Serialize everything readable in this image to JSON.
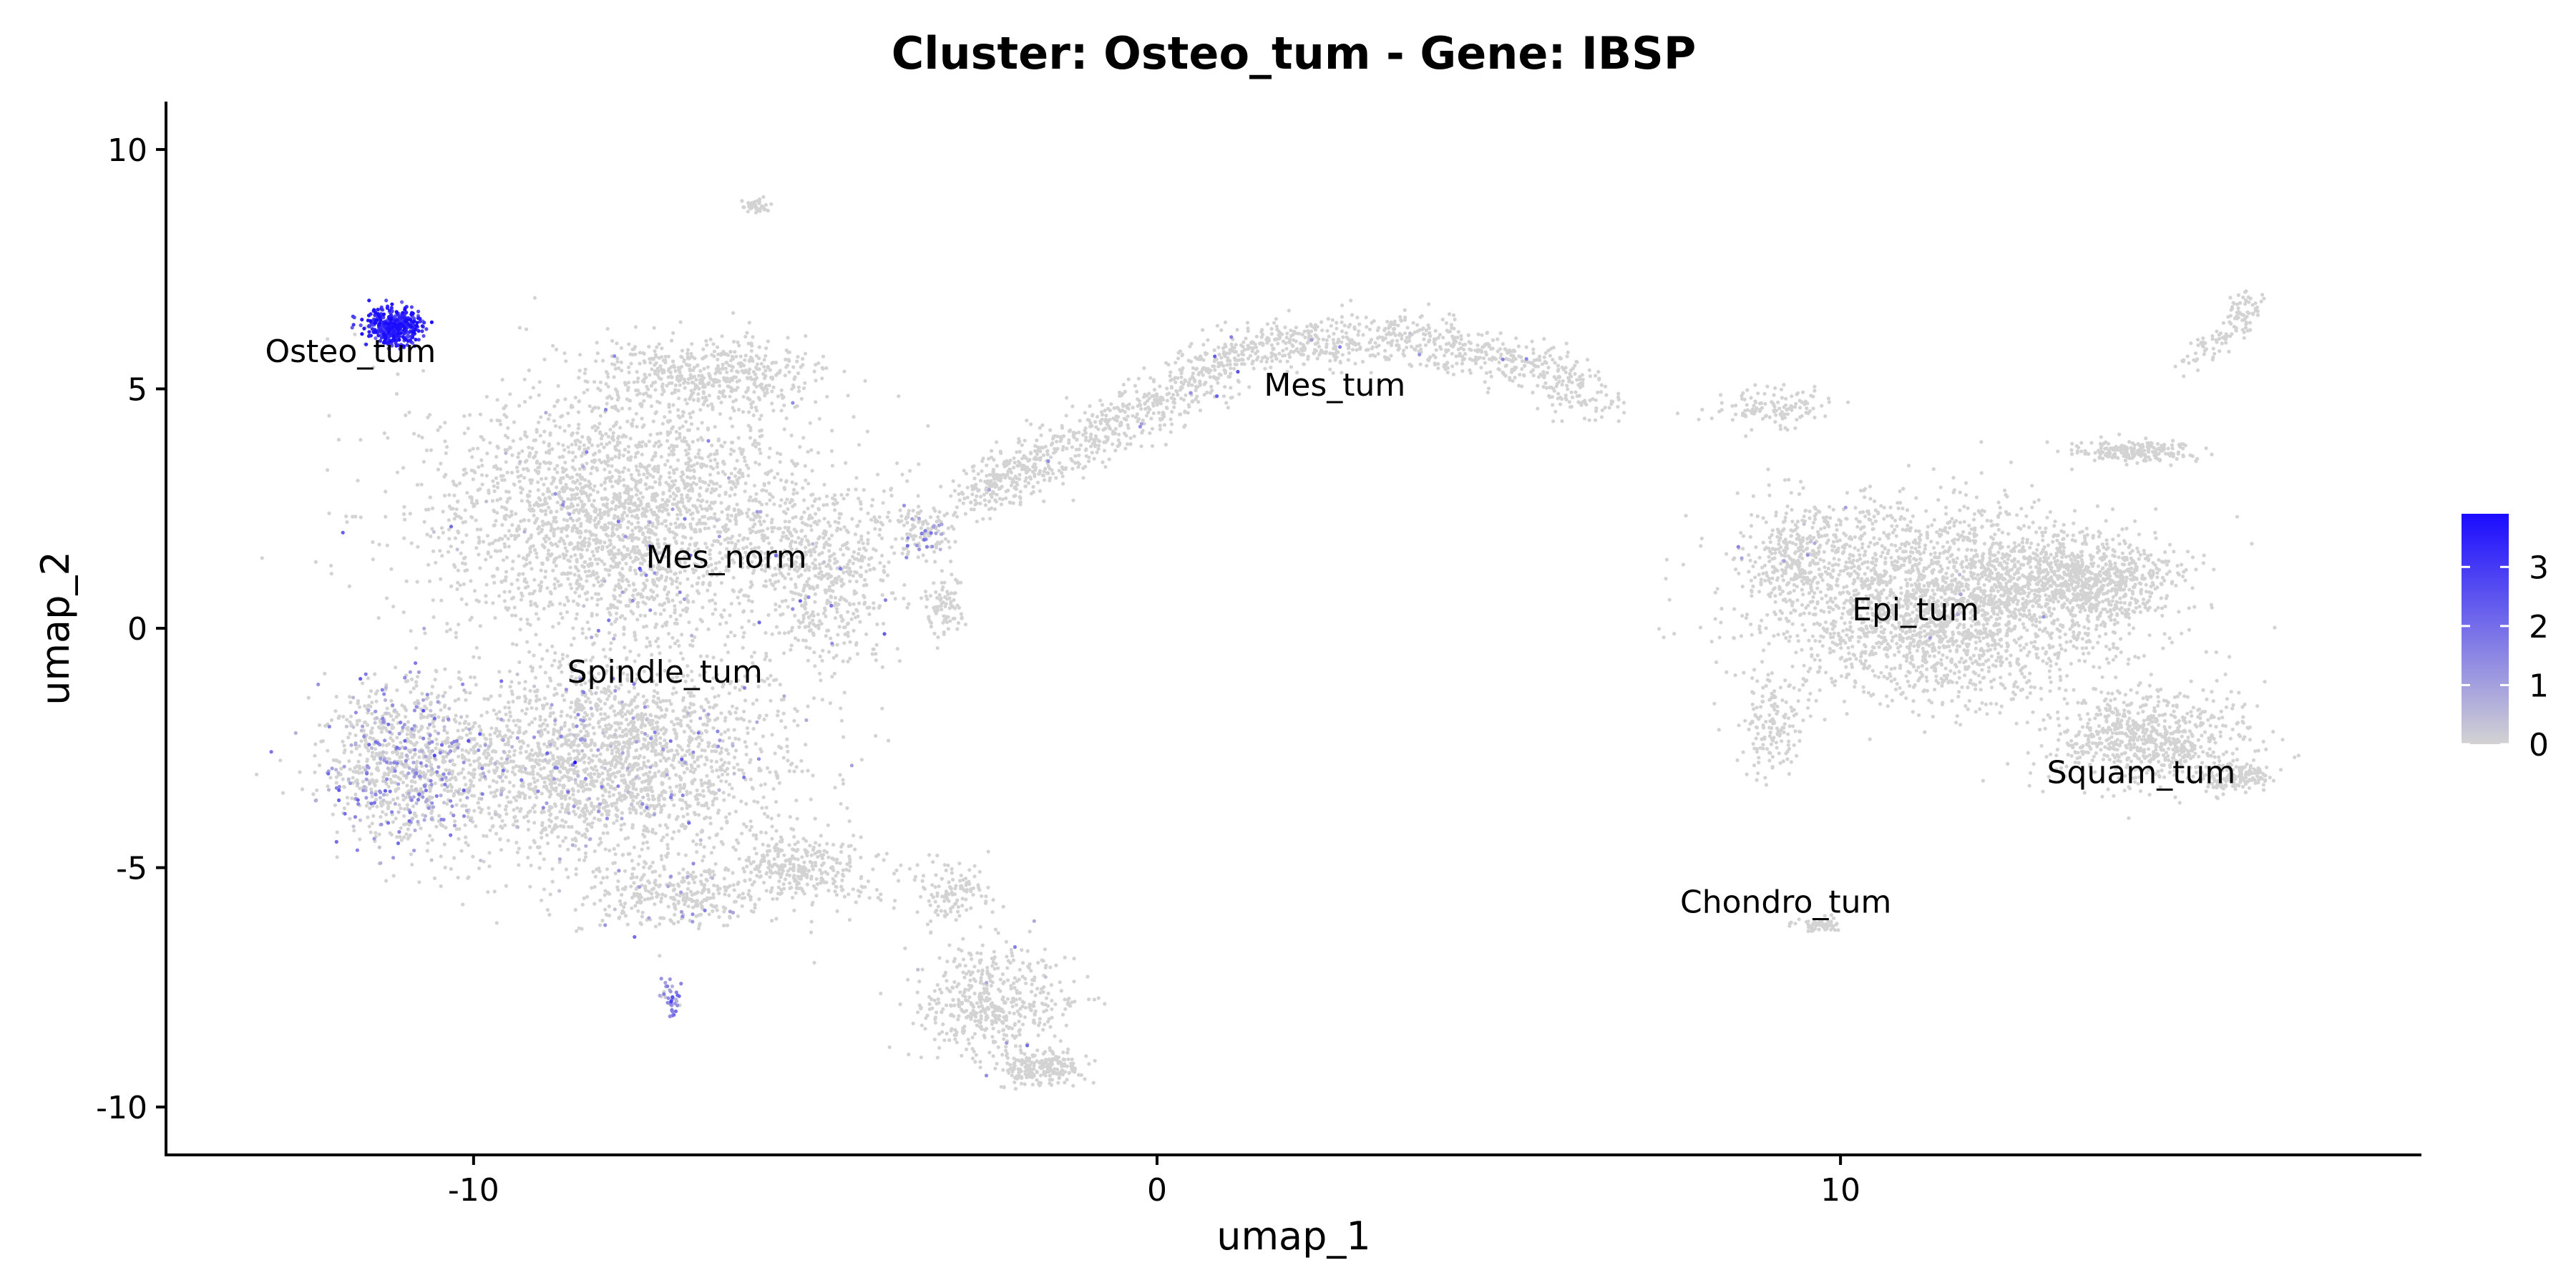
{
  "chart_data": {
    "type": "scatter",
    "title": "Cluster: Osteo_tum - Gene: IBSP",
    "xlabel": "umap_1",
    "ylabel": "umap_2",
    "xlim": [
      -14.5,
      18.5
    ],
    "ylim": [
      -11,
      11
    ],
    "xticks": [
      {
        "value": -10,
        "label": "-10"
      },
      {
        "value": 0,
        "label": "0"
      },
      {
        "value": 10,
        "label": "10"
      }
    ],
    "yticks": [
      {
        "value": 10,
        "label": "10"
      },
      {
        "value": 5,
        "label": "5"
      },
      {
        "value": 0,
        "label": "0"
      },
      {
        "value": -5,
        "label": "-5"
      },
      {
        "value": -10,
        "label": "-10"
      }
    ],
    "grid": false,
    "legend_position": "right",
    "colorbar": {
      "min": 0,
      "max": 3.9,
      "low_color": "#d3d3d3",
      "high_color": "#1a0cff",
      "ticks": [
        {
          "value": 0,
          "label": "0"
        },
        {
          "value": 1,
          "label": "1"
        },
        {
          "value": 2,
          "label": "2"
        },
        {
          "value": 3,
          "label": "3"
        }
      ]
    },
    "cluster_labels": [
      {
        "name": "Osteo_tum",
        "x": -11.8,
        "y": 5.8
      },
      {
        "name": "Mes_tum",
        "x": 2.6,
        "y": 5.1
      },
      {
        "name": "Mes_norm",
        "x": -6.3,
        "y": 1.5
      },
      {
        "name": "Epi_tum",
        "x": 11.1,
        "y": 0.4
      },
      {
        "name": "Spindle_tum",
        "x": -7.2,
        "y": -0.9
      },
      {
        "name": "Squam_tum",
        "x": 14.4,
        "y": -3.0
      },
      {
        "name": "Chondro_tum",
        "x": 9.2,
        "y": -5.7
      }
    ],
    "point_regions": [
      {
        "cluster": "Mes_norm",
        "cx": -7.8,
        "cy": 2.3,
        "sx": 2.6,
        "sy": 2.3,
        "n": 2600,
        "expr_rate": 0.02,
        "expr_mean": 1.2
      },
      {
        "cluster": "Spindle_tum",
        "cx": -8.0,
        "cy": -2.8,
        "sx": 2.3,
        "sy": 1.9,
        "n": 2200,
        "expr_rate": 0.06,
        "expr_mean": 1.0
      },
      {
        "cluster": "Spindle_tum",
        "cx": -11.0,
        "cy": -2.8,
        "sx": 1.2,
        "sy": 1.6,
        "n": 900,
        "expr_rate": 0.3,
        "expr_mean": 1.0
      },
      {
        "cluster": "Mes_norm",
        "cx": -6.6,
        "cy": 5.3,
        "sx": 1.5,
        "sy": 0.7,
        "n": 500,
        "expr_rate": 0.0,
        "expr_mean": 0
      },
      {
        "cluster": "Mes_norm",
        "cx": -4.8,
        "cy": 1.0,
        "sx": 0.9,
        "sy": 1.8,
        "n": 500,
        "expr_rate": 0.03,
        "expr_mean": 1.5
      },
      {
        "cluster": "Spindle_tum",
        "cx": -5.2,
        "cy": -5.0,
        "sx": 0.9,
        "sy": 0.7,
        "n": 300,
        "expr_rate": 0.0,
        "expr_mean": 0
      },
      {
        "cluster": "Spindle_tum",
        "cx": -7.0,
        "cy": -5.6,
        "sx": 1.3,
        "sy": 0.6,
        "n": 300,
        "expr_rate": 0.08,
        "expr_mean": 1.0
      },
      {
        "cluster": "Mes_norm",
        "cx": -3.4,
        "cy": 2.0,
        "sx": 0.4,
        "sy": 0.5,
        "n": 120,
        "expr_rate": 0.2,
        "expr_mean": 1.0
      },
      {
        "cluster": "Mes_norm",
        "cx": -3.1,
        "cy": 0.5,
        "sx": 0.3,
        "sy": 0.6,
        "n": 80,
        "expr_rate": 0.0,
        "expr_mean": 0
      },
      {
        "cluster": "Mes_tum",
        "cx": -2.4,
        "cy": -7.8,
        "sx": 1.0,
        "sy": 1.1,
        "n": 500,
        "expr_rate": 0.01,
        "expr_mean": 1.0
      },
      {
        "cluster": "Mes_tum",
        "cx": -3.0,
        "cy": -5.5,
        "sx": 0.6,
        "sy": 0.6,
        "n": 120,
        "expr_rate": 0.0,
        "expr_mean": 0
      },
      {
        "cluster": "Mes_tum",
        "cx": -1.7,
        "cy": -9.2,
        "sx": 0.6,
        "sy": 0.3,
        "n": 200,
        "expr_rate": 0.01,
        "expr_mean": 1.0
      },
      {
        "cluster": "Osteo_tum",
        "cx": -11.2,
        "cy": 6.3,
        "sx": 0.35,
        "sy": 0.35,
        "n": 450,
        "expr_rate": 0.97,
        "expr_mean": 3.2
      },
      {
        "cluster": "Spindle_tum",
        "cx": -7.1,
        "cy": -7.8,
        "sx": 0.12,
        "sy": 0.35,
        "n": 40,
        "expr_rate": 0.9,
        "expr_mean": 1.5
      },
      {
        "cluster": "Mes_norm",
        "cx": -5.9,
        "cy": 8.8,
        "sx": 0.2,
        "sy": 0.15,
        "n": 40,
        "expr_rate": 0.0,
        "expr_mean": 0
      },
      {
        "cluster": "Epi_tum",
        "cx": 11.5,
        "cy": 0.5,
        "sx": 2.3,
        "sy": 1.8,
        "n": 2400,
        "expr_rate": 0.003,
        "expr_mean": 1.0
      },
      {
        "cluster": "Epi_tum",
        "cx": 13.6,
        "cy": 1.0,
        "sx": 1.3,
        "sy": 0.8,
        "n": 800,
        "expr_rate": 0.0,
        "expr_mean": 0
      },
      {
        "cluster": "Squam_tum",
        "cx": 14.5,
        "cy": -2.3,
        "sx": 1.3,
        "sy": 0.9,
        "n": 700,
        "expr_rate": 0.0,
        "expr_mean": 0
      },
      {
        "cluster": "Squam_tum",
        "cx": 15.8,
        "cy": -3.1,
        "sx": 0.5,
        "sy": 0.3,
        "n": 150,
        "expr_rate": 0.0,
        "expr_mean": 0
      },
      {
        "cluster": "Epi_tum",
        "cx": 14.3,
        "cy": 3.7,
        "sx": 0.8,
        "sy": 0.2,
        "n": 200,
        "expr_rate": 0.0,
        "expr_mean": 0
      },
      {
        "cluster": "Epi_tum",
        "cx": 9.4,
        "cy": 1.6,
        "sx": 0.7,
        "sy": 1.0,
        "n": 300,
        "expr_rate": 0.02,
        "expr_mean": 1.0
      },
      {
        "cluster": "Epi_tum",
        "cx": 9.0,
        "cy": -2.0,
        "sx": 0.4,
        "sy": 1.0,
        "n": 150,
        "expr_rate": 0.0,
        "expr_mean": 0
      },
      {
        "cluster": "Chondro_tum",
        "cx": 9.7,
        "cy": -6.2,
        "sx": 0.35,
        "sy": 0.15,
        "n": 60,
        "expr_rate": 0.0,
        "expr_mean": 0
      },
      {
        "cluster": "Epi_tum",
        "cx": 9.0,
        "cy": 4.6,
        "sx": 0.8,
        "sy": 0.4,
        "n": 120,
        "expr_rate": 0.0,
        "expr_mean": 0
      }
    ],
    "point_arcs": [
      {
        "cluster": "Mes_tum",
        "points": [
          [
            -2.8,
            2.7
          ],
          [
            -1.5,
            3.6
          ],
          [
            0.0,
            4.7
          ],
          [
            1.2,
            5.8
          ],
          [
            3.0,
            6.1
          ],
          [
            4.8,
            5.8
          ],
          [
            6.6,
            4.7
          ]
        ],
        "width": 0.28,
        "n": 1500,
        "expr_rate": 0.01,
        "expr_mean": 1.2
      },
      {
        "cluster": "Epi_tum",
        "points": [
          [
            15.0,
            5.5
          ],
          [
            15.8,
            6.3
          ],
          [
            16.0,
            6.9
          ]
        ],
        "width": 0.12,
        "n": 120,
        "expr_rate": 0.0,
        "expr_mean": 0
      }
    ]
  }
}
